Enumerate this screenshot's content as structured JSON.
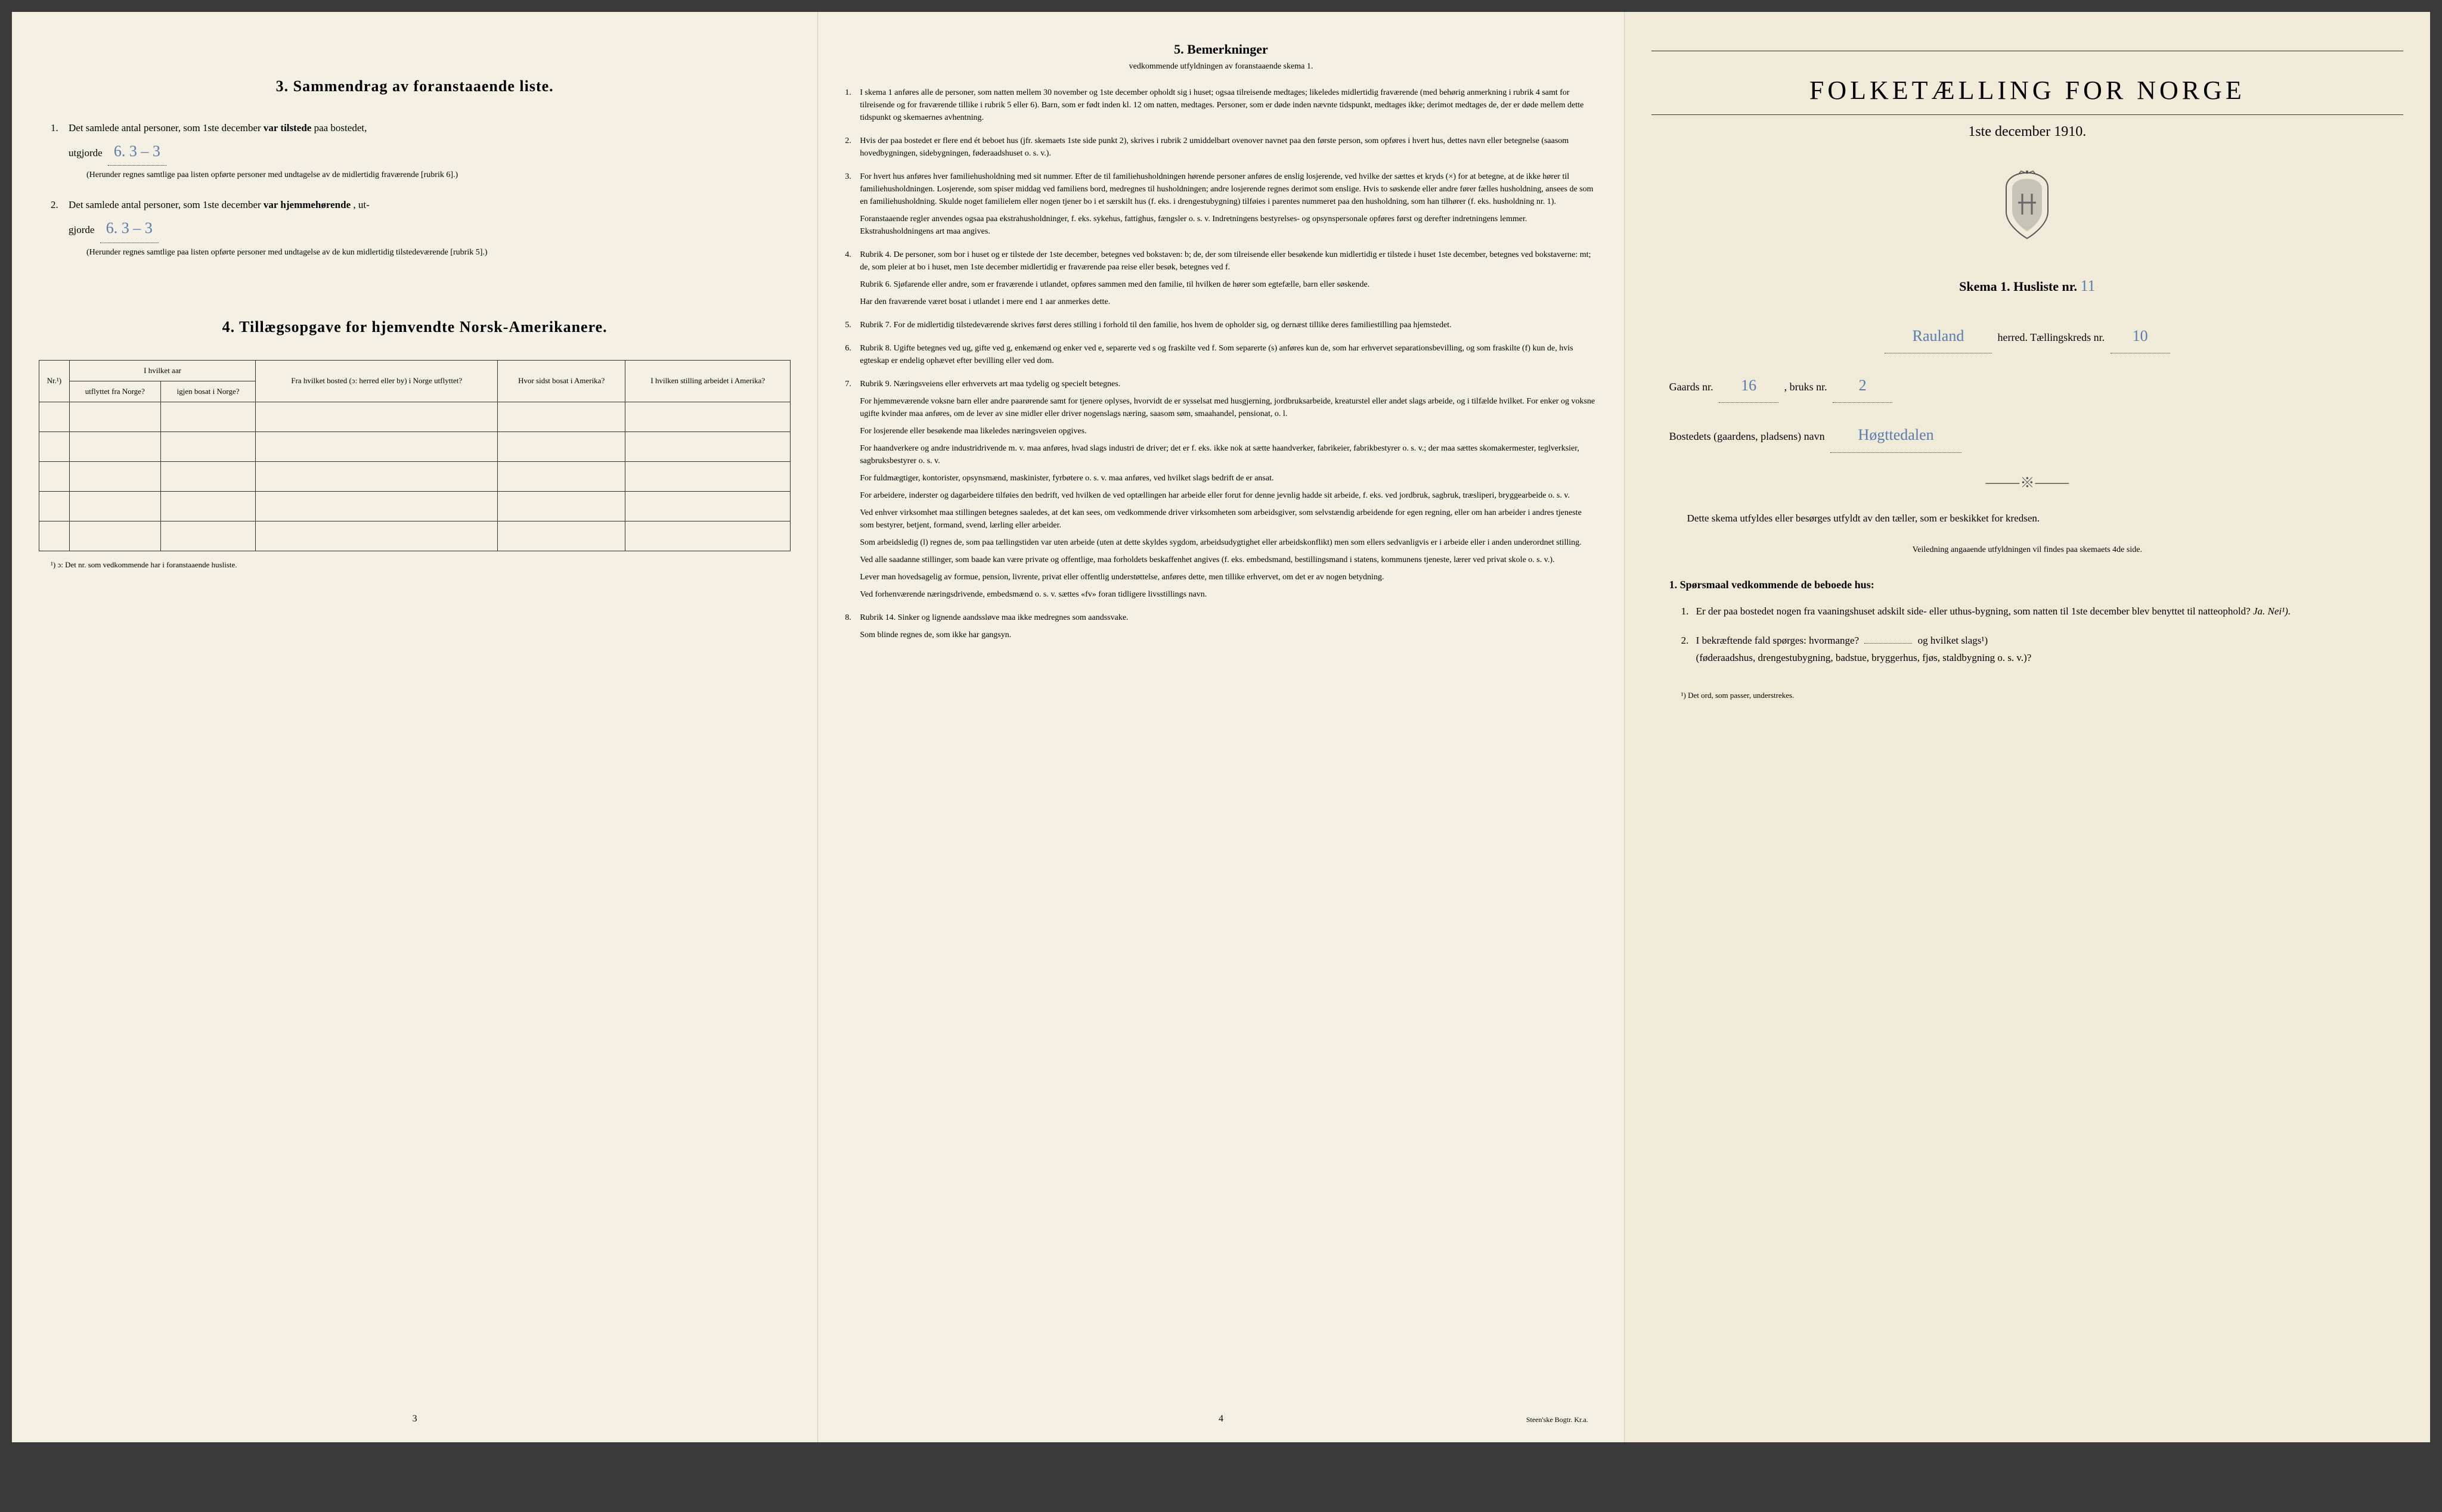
{
  "page1": {
    "section3_title": "3.   Sammendrag av foranstaaende liste.",
    "item1_text": "Det samlede antal personer, som 1ste december",
    "item1_bold": "var tilstede",
    "item1_suffix": "paa bostedet,",
    "item1_line2": "utgjorde",
    "item1_fill": "6.   3 – 3",
    "item1_note": "(Herunder regnes samtlige paa listen opførte personer med undtagelse av de midlertidig fraværende [rubrik 6].)",
    "item2_text": "Det samlede antal personer, som 1ste december",
    "item2_bold": "var hjemmehørende",
    "item2_suffix": ", ut-",
    "item2_line2": "gjorde",
    "item2_fill": "6.   3 – 3",
    "item2_note": "(Herunder regnes samtlige paa listen opførte personer med undtagelse av de kun midlertidig tilstedeværende [rubrik 5].)",
    "section4_title": "4.   Tillægsopgave for hjemvendte Norsk-Amerikanere.",
    "table_headers": {
      "col1": "Nr.¹)",
      "col2_top": "I hvilket aar",
      "col2a": "utflyttet fra Norge?",
      "col2b": "igjen bosat i Norge?",
      "col3": "Fra hvilket bosted (ɔ: herred eller by) i Norge utflyttet?",
      "col4": "Hvor sidst bosat i Amerika?",
      "col5": "I hvilken stilling arbeidet i Amerika?"
    },
    "table_footnote": "¹) ɔ: Det nr. som vedkommende har i foranstaaende husliste.",
    "page_num": "3"
  },
  "page2": {
    "title": "5.   Bemerkninger",
    "subtitle": "vedkommende utfyldningen av foranstaaende skema 1.",
    "items": [
      {
        "num": "1.",
        "text": "I skema 1 anføres alle de personer, som natten mellem 30 november og 1ste december opholdt sig i huset; ogsaa tilreisende medtages; likeledes midlertidig fraværende (med behørig anmerkning i rubrik 4 samt for tilreisende og for fraværende tillike i rubrik 5 eller 6). Barn, som er født inden kl. 12 om natten, medtages. Personer, som er døde inden nævnte tidspunkt, medtages ikke; derimot medtages de, der er døde mellem dette tidspunkt og skemaernes avhentning."
      },
      {
        "num": "2.",
        "text": "Hvis der paa bostedet er flere end ét beboet hus (jfr. skemaets 1ste side punkt 2), skrives i rubrik 2 umiddelbart ovenover navnet paa den første person, som opføres i hvert hus, dettes navn eller betegnelse (saasom hovedbygningen, sidebygningen, føderaadshuset o. s. v.)."
      },
      {
        "num": "3.",
        "text": "For hvert hus anføres hver familiehusholdning med sit nummer. Efter de til familiehusholdningen hørende personer anføres de enslig losjerende, ved hvilke der sættes et kryds (×) for at betegne, at de ikke hører til familiehusholdningen. Losjerende, som spiser middag ved familiens bord, medregnes til husholdningen; andre losjerende regnes derimot som enslige. Hvis to søskende eller andre fører fælles husholdning, ansees de som en familiehusholdning. Skulde noget familielem eller nogen tjener bo i et særskilt hus (f. eks. i drengestubygning) tilføies i parentes nummeret paa den husholdning, som han tilhører (f. eks. husholdning nr. 1).",
        "extra": "Foranstaaende regler anvendes ogsaa paa ekstrahusholdninger, f. eks. sykehus, fattighus, fængsler o. s. v. Indretningens bestyrelses- og opsynspersonale opføres først og derefter indretningens lemmer. Ekstrahusholdningens art maa angives."
      },
      {
        "num": "4.",
        "text": "Rubrik 4. De personer, som bor i huset og er tilstede der 1ste december, betegnes ved bokstaven: b; de, der som tilreisende eller besøkende kun midlertidig er tilstede i huset 1ste december, betegnes ved bokstaverne: mt; de, som pleier at bo i huset, men 1ste december midlertidig er fraværende paa reise eller besøk, betegnes ved f.",
        "extra": "Rubrik 6. Sjøfarende eller andre, som er fraværende i utlandet, opføres sammen med den familie, til hvilken de hører som egtefælle, barn eller søskende.",
        "extra2": "Har den fraværende været bosat i utlandet i mere end 1 aar anmerkes dette."
      },
      {
        "num": "5.",
        "text": "Rubrik 7. For de midlertidig tilstedeværende skrives først deres stilling i forhold til den familie, hos hvem de opholder sig, og dernæst tillike deres familiestilling paa hjemstedet."
      },
      {
        "num": "6.",
        "text": "Rubrik 8. Ugifte betegnes ved ug, gifte ved g, enkemænd og enker ved e, separerte ved s og fraskilte ved f. Som separerte (s) anføres kun de, som har erhvervet separationsbevilling, og som fraskilte (f) kun de, hvis egteskap er endelig ophævet efter bevilling eller ved dom."
      },
      {
        "num": "7.",
        "text": "Rubrik 9. Næringsveiens eller erhvervets art maa tydelig og specielt betegnes.",
        "paragraphs": [
          "For hjemmeværende voksne barn eller andre paarørende samt for tjenere oplyses, hvorvidt de er sysselsat med husgjerning, jordbruksarbeide, kreaturstel eller andet slags arbeide, og i tilfælde hvilket. For enker og voksne ugifte kvinder maa anføres, om de lever av sine midler eller driver nogenslags næring, saasom søm, smaahandel, pensionat, o. l.",
          "For losjerende eller besøkende maa likeledes næringsveien opgives.",
          "For haandverkere og andre industridrivende m. v. maa anføres, hvad slags industri de driver; det er f. eks. ikke nok at sætte haandverker, fabrikeier, fabrikbestyrer o. s. v.; der maa sættes skomakermester, teglverksier, sagbruksbestyrer o. s. v.",
          "For fuldmægtiger, kontorister, opsynsmænd, maskinister, fyrbøtere o. s. v. maa anføres, ved hvilket slags bedrift de er ansat.",
          "For arbeidere, inderster og dagarbeidere tilføies den bedrift, ved hvilken de ved optællingen har arbeide eller forut for denne jevnlig hadde sit arbeide, f. eks. ved jordbruk, sagbruk, træsliperi, bryggearbeide o. s. v.",
          "Ved enhver virksomhet maa stillingen betegnes saaledes, at det kan sees, om vedkommende driver virksomheten som arbeidsgiver, som selvstændig arbeidende for egen regning, eller om han arbeider i andres tjeneste som bestyrer, betjent, formand, svend, lærling eller arbeider.",
          "Som arbeidsledig (l) regnes de, som paa tællingstiden var uten arbeide (uten at dette skyldes sygdom, arbeidsudygtighet eller arbeidskonflikt) men som ellers sedvanligvis er i arbeide eller i anden underordnet stilling.",
          "Ved alle saadanne stillinger, som baade kan være private og offentlige, maa forholdets beskaffenhet angives (f. eks. embedsmand, bestillingsmand i statens, kommunens tjeneste, lærer ved privat skole o. s. v.).",
          "Lever man hovedsagelig av formue, pension, livrente, privat eller offentlig understøttelse, anføres dette, men tillike erhvervet, om det er av nogen betydning.",
          "Ved forhenværende næringsdrivende, embedsmænd o. s. v. sættes «fv» foran tidligere livsstillings navn."
        ]
      },
      {
        "num": "8.",
        "text": "Rubrik 14. Sinker og lignende aandssløve maa ikke medregnes som aandssvake.",
        "extra": "Som blinde regnes de, som ikke har gangsyn."
      }
    ],
    "page_num": "4",
    "footer": "Steen'ske Bogtr.   Kr.a."
  },
  "page3": {
    "main_title": "FOLKETÆLLING FOR NORGE",
    "date": "1ste december 1910.",
    "skema_text": "Skema 1.   Husliste nr.",
    "husliste_nr": "11",
    "herred_value": "Rauland",
    "herred_label": "herred.   Tællingskreds nr.",
    "kreds_nr": "10",
    "gaards_label": "Gaards nr.",
    "gaards_nr": "16",
    "bruks_label": ", bruks nr.",
    "bruks_nr": "2",
    "bosted_label": "Bostedets (gaardens, pladsens) navn",
    "bosted_value": "Høgttedalen",
    "instructions": "Dette skema utfyldes eller besørges utfyldt av den tæller, som er beskikket for kredsen.",
    "instructions_sub": "Veiledning angaaende utfyldningen vil findes paa skemaets 4de side.",
    "sporsmaal_title": "1. Spørsmaal vedkommende de beboede hus:",
    "q1": "Er der paa bostedet nogen fra vaaningshuset adskilt side- eller uthus-bygning, som natten til 1ste december blev benyttet til natteophold?",
    "q1_answer": "Ja.   Nei¹).",
    "q2": "I bekræftende fald spørges: hvormange?",
    "q2_suffix": "og hvilket slags¹)",
    "q2_note": "(føderaadshus, drengestubygning, badstue, bryggerhus, fjøs, staldbygning o. s. v.)?",
    "footnote": "¹) Det ord, som passer, understrekes."
  },
  "colors": {
    "paper": "#f4f0e3",
    "paper_right": "#f0ebd8",
    "text": "#222222",
    "handwriting": "#5a7ab0",
    "border": "#333333"
  }
}
